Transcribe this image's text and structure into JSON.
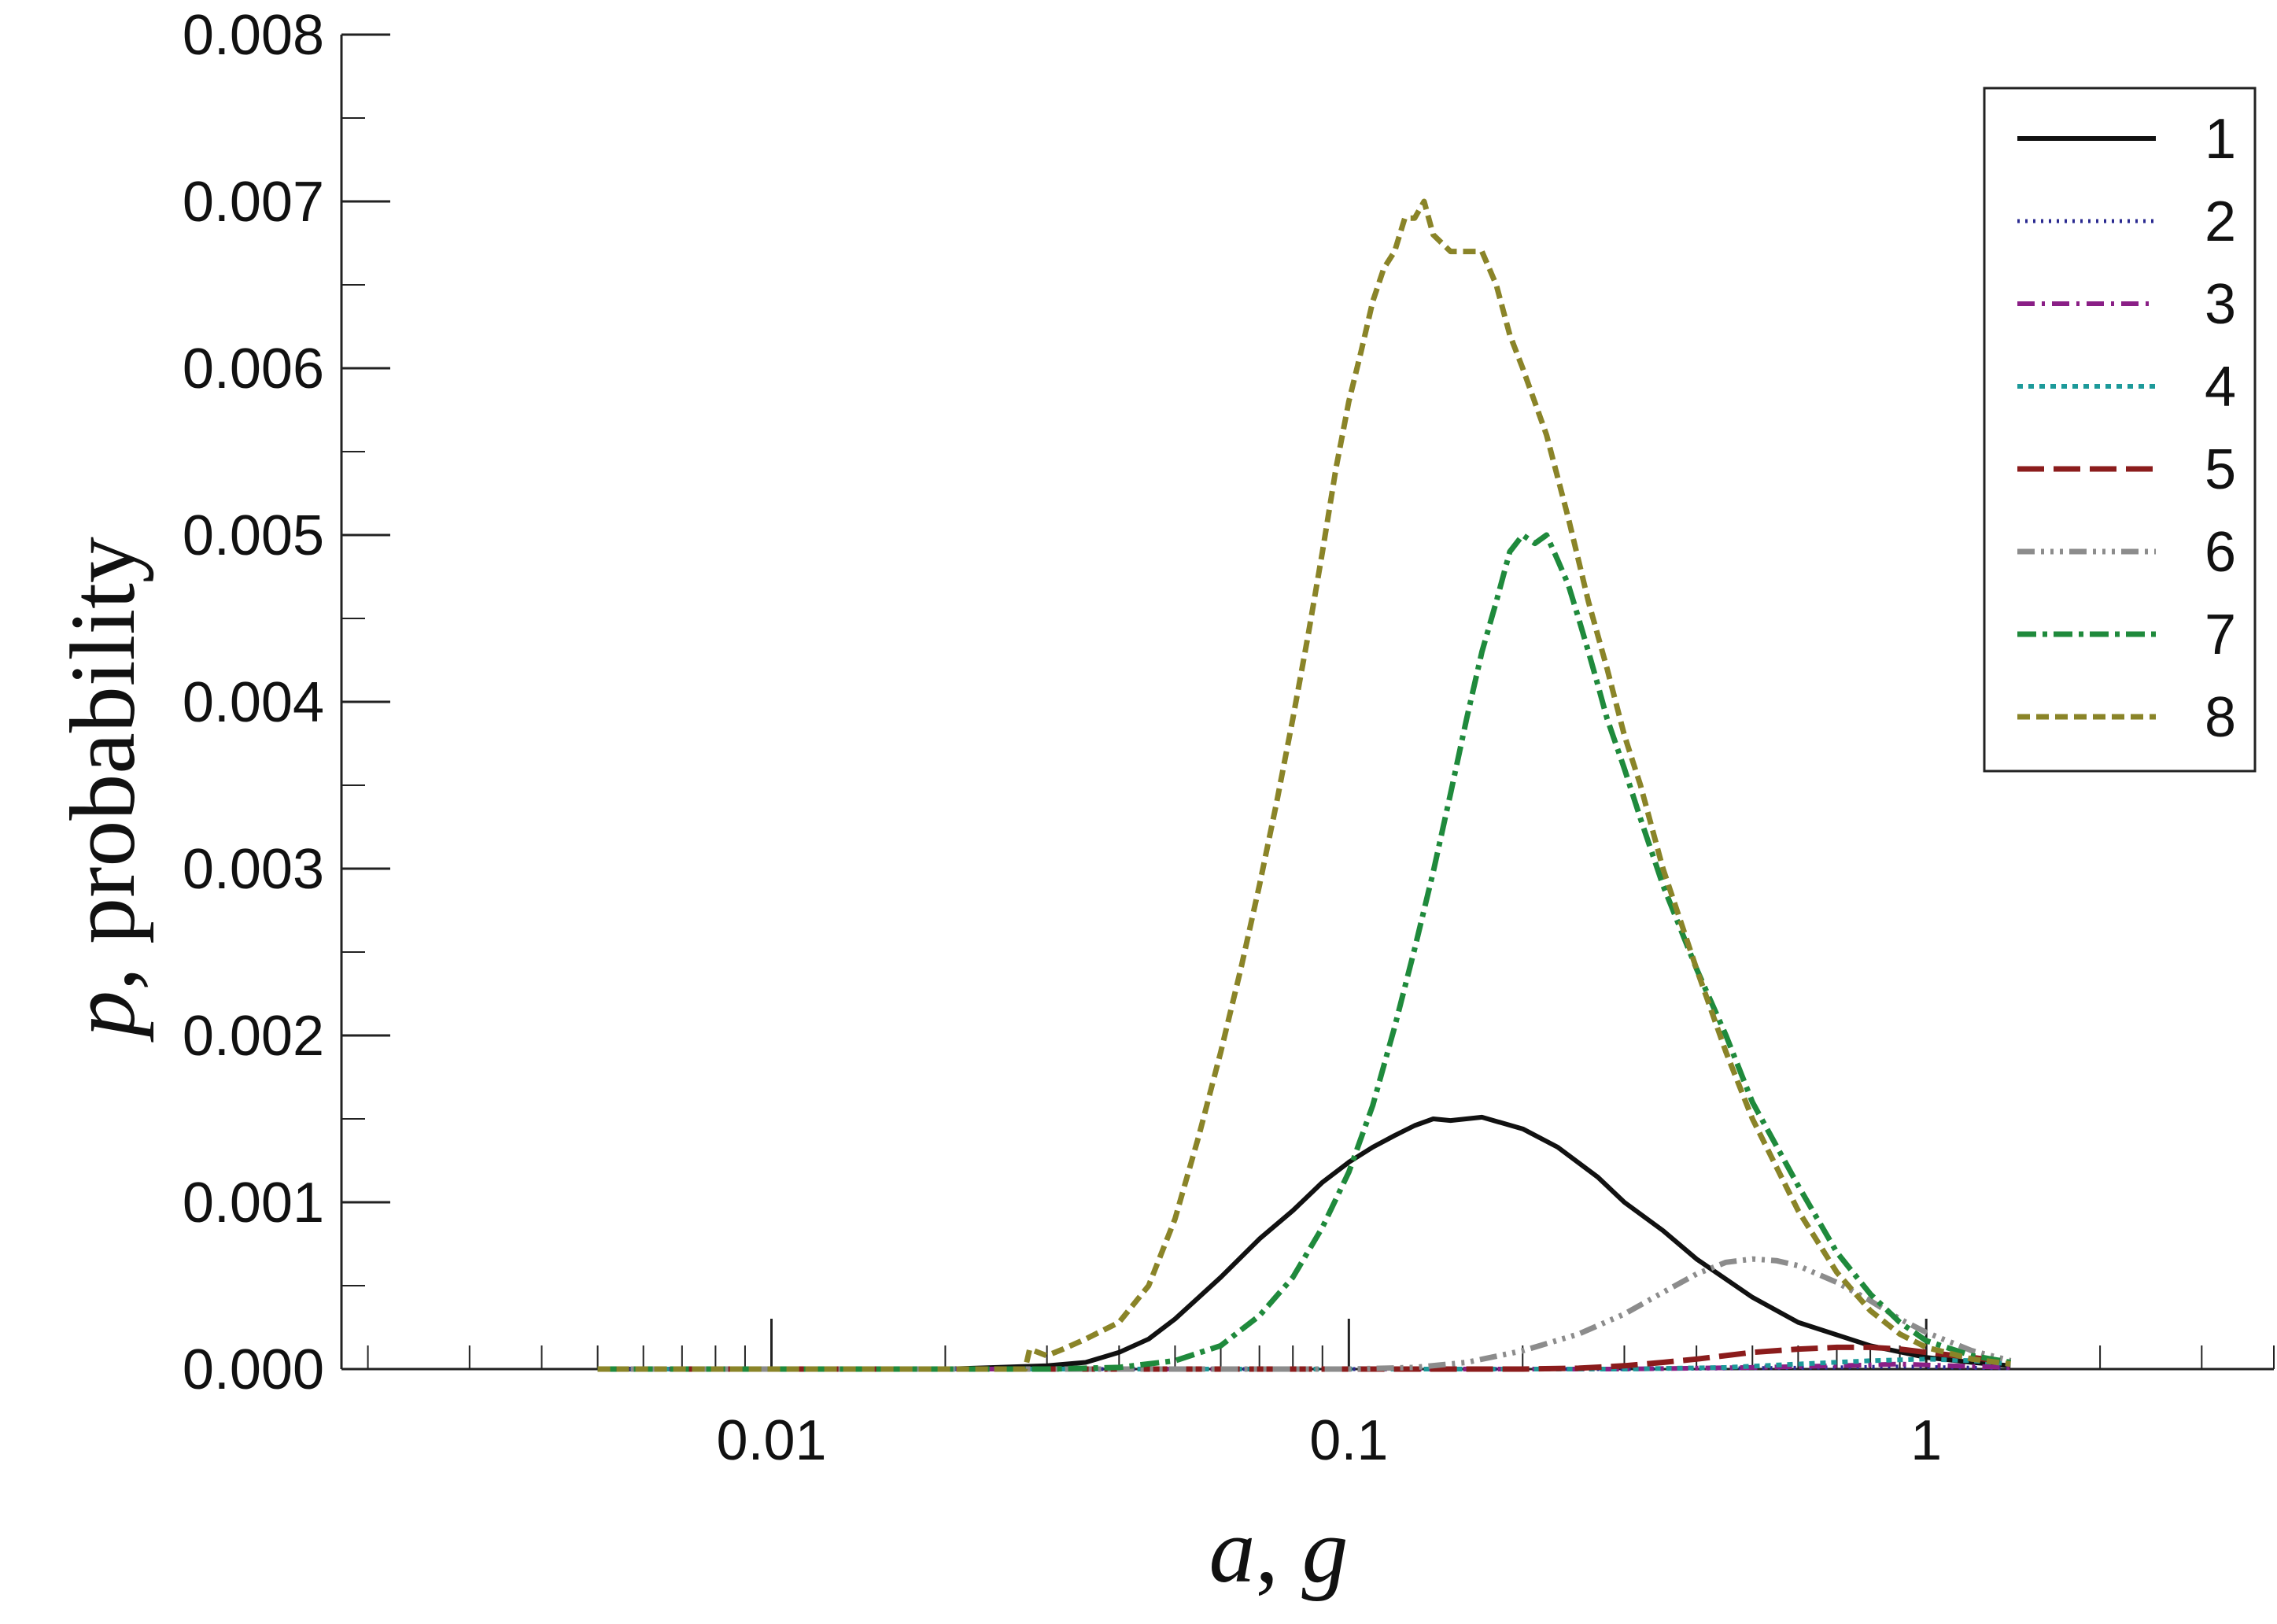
{
  "chart_data": {
    "type": "line",
    "xlabel": "a, g",
    "xlabel_parts": [
      "a",
      ", ",
      "g"
    ],
    "ylabel": "p, probability",
    "ylabel_parts": [
      "p",
      ", probability"
    ],
    "xscale": "log",
    "xlim": [
      0.0018,
      4.0
    ],
    "ylim": [
      0.0,
      0.008
    ],
    "grid": false,
    "legend_position": "top-right",
    "x_ticks": [
      {
        "value": 0.01,
        "label": "0.01"
      },
      {
        "value": 0.1,
        "label": "0.1"
      },
      {
        "value": 1,
        "label": "1"
      }
    ],
    "y_ticks": [
      {
        "value": 0.0,
        "label": "0.000"
      },
      {
        "value": 0.001,
        "label": "0.001"
      },
      {
        "value": 0.002,
        "label": "0.002"
      },
      {
        "value": 0.003,
        "label": "0.003"
      },
      {
        "value": 0.004,
        "label": "0.004"
      },
      {
        "value": 0.005,
        "label": "0.005"
      },
      {
        "value": 0.006,
        "label": "0.006"
      },
      {
        "value": 0.007,
        "label": "0.007"
      },
      {
        "value": 0.008,
        "label": "0.008"
      }
    ],
    "series": [
      {
        "name": "1",
        "color": "#111111",
        "dash": "",
        "width": 6,
        "x": [
          0.005,
          0.02,
          0.03,
          0.035,
          0.04,
          0.045,
          0.05,
          0.06,
          0.07,
          0.08,
          0.09,
          0.1,
          0.11,
          0.12,
          0.13,
          0.14,
          0.15,
          0.17,
          0.2,
          0.23,
          0.27,
          0.3,
          0.35,
          0.4,
          0.5,
          0.6,
          0.8,
          1.0,
          1.2,
          1.4
        ],
        "y": [
          0,
          0,
          2e-05,
          4e-05,
          0.0001,
          0.00018,
          0.0003,
          0.00055,
          0.00078,
          0.00095,
          0.00112,
          0.00124,
          0.00133,
          0.0014,
          0.00146,
          0.0015,
          0.00149,
          0.00151,
          0.00144,
          0.00133,
          0.00115,
          0.001,
          0.00083,
          0.00066,
          0.00043,
          0.00028,
          0.00014,
          7e-05,
          4e-05,
          2e-05
        ]
      },
      {
        "name": "2",
        "color": "#2a2a90",
        "dash": "3 7",
        "width": 5,
        "x": [
          0.005,
          0.3,
          0.5,
          0.7,
          0.9,
          1.1,
          1.4
        ],
        "y": [
          0,
          0,
          5e-06,
          1e-05,
          1.5e-05,
          1e-05,
          5e-06
        ]
      },
      {
        "name": "3",
        "color": "#8a1f86",
        "dash": "22 9 4 9",
        "width": 6,
        "x": [
          0.005,
          0.3,
          0.5,
          0.7,
          0.9,
          1.1,
          1.4
        ],
        "y": [
          0,
          0,
          1e-05,
          2e-05,
          3e-05,
          2e-05,
          1e-05
        ]
      },
      {
        "name": "4",
        "color": "#1d9a9a",
        "dash": "7 7",
        "width": 6,
        "x": [
          0.005,
          0.3,
          0.45,
          0.6,
          0.8,
          1.0,
          1.2,
          1.4
        ],
        "y": [
          0,
          0,
          1e-05,
          3e-05,
          5e-05,
          6e-05,
          5e-05,
          3e-05
        ]
      },
      {
        "name": "5",
        "color": "#8b1c1c",
        "dash": "34 12",
        "width": 7,
        "x": [
          0.005,
          0.2,
          0.25,
          0.3,
          0.35,
          0.4,
          0.5,
          0.6,
          0.7,
          0.8,
          0.9,
          1.0,
          1.2,
          1.4
        ],
        "y": [
          0,
          0,
          5e-06,
          2e-05,
          4e-05,
          6e-05,
          0.0001,
          0.00012,
          0.00013,
          0.00013,
          0.00012,
          0.0001,
          7e-05,
          4e-05
        ]
      },
      {
        "name": "6",
        "color": "#8c8c8c",
        "dash": "22 8 4 8 4 8 4 8",
        "width": 7,
        "x": [
          0.005,
          0.1,
          0.13,
          0.16,
          0.2,
          0.25,
          0.3,
          0.35,
          0.4,
          0.45,
          0.5,
          0.55,
          0.6,
          0.7,
          0.8,
          0.9,
          1.0,
          1.2,
          1.4
        ],
        "y": [
          0,
          0,
          1e-05,
          4e-05,
          0.00011,
          0.00021,
          0.00033,
          0.00046,
          0.00057,
          0.00064,
          0.00066,
          0.00065,
          0.00062,
          0.00052,
          0.00041,
          0.0003,
          0.00022,
          0.00011,
          5e-05
        ]
      },
      {
        "name": "7",
        "color": "#1f8a3c",
        "dash": "24 8 6 8",
        "width": 7,
        "x": [
          0.005,
          0.03,
          0.04,
          0.05,
          0.06,
          0.07,
          0.08,
          0.09,
          0.1,
          0.11,
          0.12,
          0.13,
          0.14,
          0.15,
          0.16,
          0.17,
          0.18,
          0.19,
          0.2,
          0.21,
          0.22,
          0.23,
          0.24,
          0.25,
          0.26,
          0.27,
          0.28,
          0.3,
          0.32,
          0.35,
          0.4,
          0.45,
          0.5,
          0.6,
          0.7,
          0.8,
          0.9,
          1.0,
          1.2,
          1.4
        ],
        "y": [
          0,
          0,
          1e-05,
          5e-05,
          0.00014,
          0.00032,
          0.00055,
          0.00085,
          0.00118,
          0.00158,
          0.00205,
          0.00252,
          0.00298,
          0.00345,
          0.0039,
          0.0043,
          0.0046,
          0.0049,
          0.005,
          0.00495,
          0.005,
          0.00485,
          0.0047,
          0.0045,
          0.0043,
          0.0041,
          0.0039,
          0.0036,
          0.0033,
          0.0029,
          0.0024,
          0.002,
          0.0016,
          0.0011,
          0.0007,
          0.00045,
          0.00028,
          0.00017,
          8e-05,
          4e-05
        ]
      },
      {
        "name": "8",
        "color": "#8a8428",
        "dash": "16 8",
        "width": 7,
        "x": [
          0.005,
          0.0275,
          0.028,
          0.03,
          0.032,
          0.035,
          0.04,
          0.045,
          0.05,
          0.055,
          0.06,
          0.065,
          0.07,
          0.075,
          0.08,
          0.085,
          0.09,
          0.095,
          0.1,
          0.105,
          0.11,
          0.115,
          0.12,
          0.125,
          0.13,
          0.135,
          0.14,
          0.15,
          0.16,
          0.17,
          0.18,
          0.19,
          0.2,
          0.22,
          0.24,
          0.26,
          0.28,
          0.3,
          0.32,
          0.35,
          0.4,
          0.45,
          0.5,
          0.6,
          0.7,
          0.8,
          0.9,
          1.0,
          1.2,
          1.4
        ],
        "y": [
          0,
          0,
          0.00012,
          8e-05,
          0.00012,
          0.00018,
          0.00028,
          0.0005,
          0.0009,
          0.0014,
          0.0019,
          0.0024,
          0.0029,
          0.0034,
          0.0039,
          0.0044,
          0.0049,
          0.0054,
          0.0058,
          0.0061,
          0.0064,
          0.0066,
          0.0067,
          0.0069,
          0.0069,
          0.007,
          0.0068,
          0.0067,
          0.0067,
          0.0067,
          0.0065,
          0.0062,
          0.006,
          0.0056,
          0.0051,
          0.0046,
          0.0042,
          0.0038,
          0.0035,
          0.003,
          0.0024,
          0.0019,
          0.0015,
          0.00095,
          0.00058,
          0.00035,
          0.00021,
          0.00013,
          6e-05,
          3e-05
        ]
      }
    ]
  }
}
